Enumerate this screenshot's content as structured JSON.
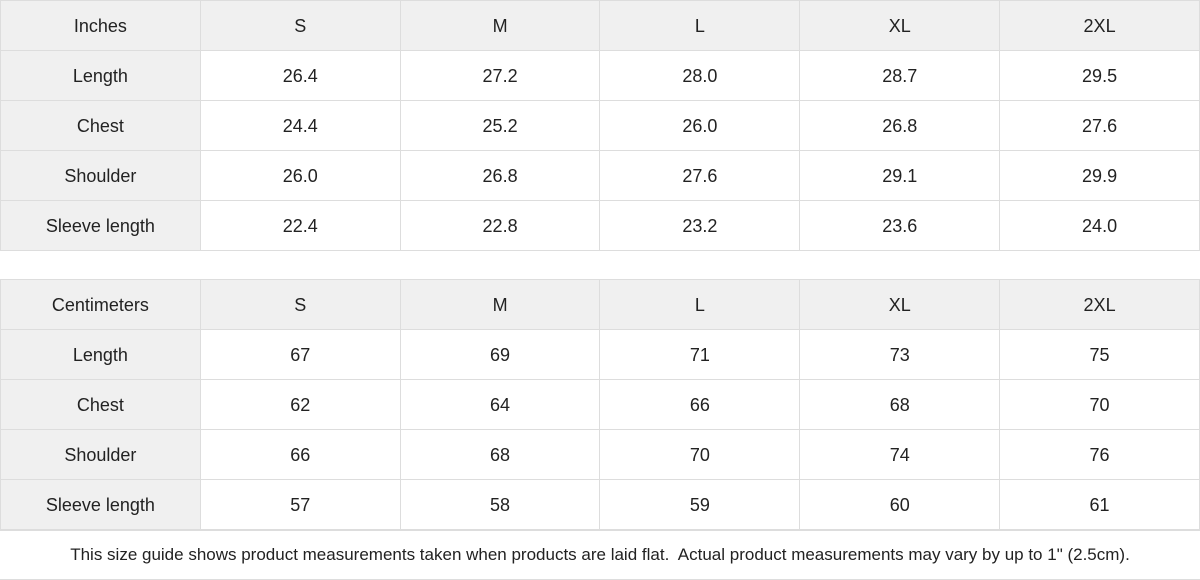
{
  "colors": {
    "header_bg": "#f0f0f0",
    "label_column_bg": "#f0f0f0",
    "cell_bg": "#ffffff",
    "border": "#dddddd",
    "text": "#222222"
  },
  "footer": {
    "note": "This size guide shows product measurements taken when products are laid flat.  Actual product measurements may vary by up to 1\" (2.5cm)."
  },
  "tables": [
    {
      "unit_label": "Inches",
      "columns": [
        "S",
        "M",
        "L",
        "XL",
        "2XL"
      ],
      "rows": [
        {
          "label": "Length",
          "values": [
            "26.4",
            "27.2",
            "28.0",
            "28.7",
            "29.5"
          ]
        },
        {
          "label": "Chest",
          "values": [
            "24.4",
            "25.2",
            "26.0",
            "26.8",
            "27.6"
          ]
        },
        {
          "label": "Shoulder",
          "values": [
            "26.0",
            "26.8",
            "27.6",
            "29.1",
            "29.9"
          ]
        },
        {
          "label": "Sleeve length",
          "values": [
            "22.4",
            "22.8",
            "23.2",
            "23.6",
            "24.0"
          ]
        }
      ]
    },
    {
      "unit_label": "Centimeters",
      "columns": [
        "S",
        "M",
        "L",
        "XL",
        "2XL"
      ],
      "rows": [
        {
          "label": "Length",
          "values": [
            "67",
            "69",
            "71",
            "73",
            "75"
          ]
        },
        {
          "label": "Chest",
          "values": [
            "62",
            "64",
            "66",
            "68",
            "70"
          ]
        },
        {
          "label": "Shoulder",
          "values": [
            "66",
            "68",
            "70",
            "74",
            "76"
          ]
        },
        {
          "label": "Sleeve length",
          "values": [
            "57",
            "58",
            "59",
            "60",
            "61"
          ]
        }
      ]
    }
  ]
}
